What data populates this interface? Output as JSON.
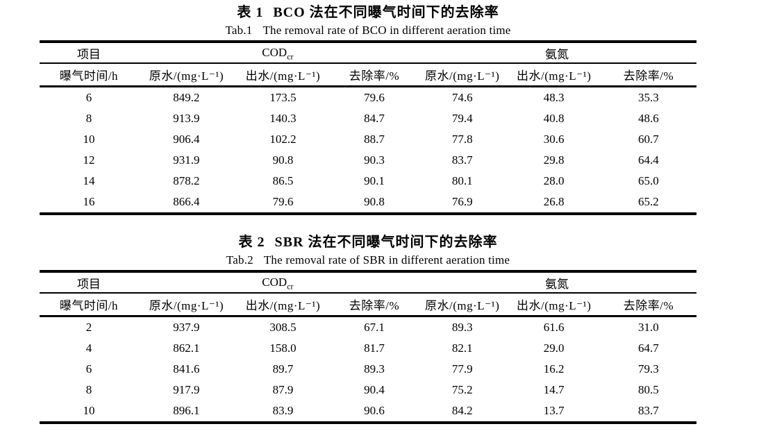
{
  "table1": {
    "title_zh": {
      "label": "表 1",
      "method": "BCO",
      "rest": "法在不同曝气时间下的去除率"
    },
    "title_en": {
      "label": "Tab.1",
      "text": "The removal rate of BCO in different aeration time"
    },
    "group": {
      "item": "项目",
      "cod": "COD",
      "cod_sub": "cr",
      "ammonia": "氨氮"
    },
    "columns": [
      "曝气时间/h",
      "原水/(mg·L⁻¹)",
      "出水/(mg·L⁻¹)",
      "去除率/%",
      "原水/(mg·L⁻¹)",
      "出水/(mg·L⁻¹)",
      "去除率/%"
    ],
    "rows": [
      [
        "6",
        "849.2",
        "173.5",
        "79.6",
        "74.6",
        "48.3",
        "35.3"
      ],
      [
        "8",
        "913.9",
        "140.3",
        "84.7",
        "79.4",
        "40.8",
        "48.6"
      ],
      [
        "10",
        "906.4",
        "102.2",
        "88.7",
        "77.8",
        "30.6",
        "60.7"
      ],
      [
        "12",
        "931.9",
        "90.8",
        "90.3",
        "83.7",
        "29.8",
        "64.4"
      ],
      [
        "14",
        "878.2",
        "86.5",
        "90.1",
        "80.1",
        "28.0",
        "65.0"
      ],
      [
        "16",
        "866.4",
        "79.6",
        "90.8",
        "76.9",
        "26.8",
        "65.2"
      ]
    ]
  },
  "table2": {
    "title_zh": {
      "label": "表 2",
      "method": "SBR",
      "rest": "法在不同曝气时间下的去除率"
    },
    "title_en": {
      "label": "Tab.2",
      "text": "The removal rate of SBR in different aeration time"
    },
    "group": {
      "item": "项目",
      "cod": "COD",
      "cod_sub": "cr",
      "ammonia": "氨氮"
    },
    "columns": [
      "曝气时间/h",
      "原水/(mg·L⁻¹)",
      "出水/(mg·L⁻¹)",
      "去除率/%",
      "原水/(mg·L⁻¹)",
      "出水/(mg·L⁻¹)",
      "去除率/%"
    ],
    "rows": [
      [
        "2",
        "937.9",
        "308.5",
        "67.1",
        "89.3",
        "61.6",
        "31.0"
      ],
      [
        "4",
        "862.1",
        "158.0",
        "81.7",
        "82.1",
        "29.0",
        "64.7"
      ],
      [
        "6",
        "841.6",
        "89.7",
        "89.3",
        "77.9",
        "16.2",
        "79.3"
      ],
      [
        "8",
        "917.9",
        "87.9",
        "90.4",
        "75.2",
        "14.7",
        "80.5"
      ],
      [
        "10",
        "896.1",
        "83.9",
        "90.6",
        "84.2",
        "13.7",
        "83.7"
      ]
    ]
  }
}
